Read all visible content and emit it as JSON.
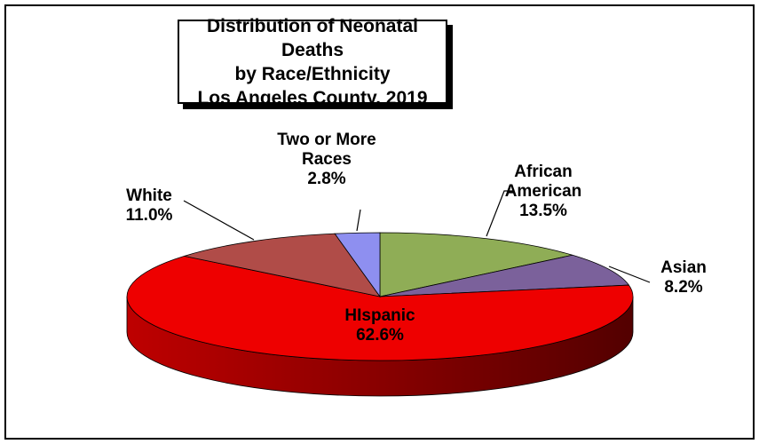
{
  "chart_data": {
    "type": "pie",
    "title": [
      "Distribution of Neonatal Deaths",
      "by Race/Ethnicity",
      "Los Angeles County, 2019"
    ],
    "categories": [
      "African American",
      "Asian",
      "HIspanic",
      "White",
      "Two or More Races"
    ],
    "values": [
      13.5,
      8.2,
      62.6,
      11.0,
      2.8
    ],
    "value_labels": [
      "13.5%",
      "8.2%",
      "62.6%",
      "11.0%",
      "2.8%"
    ],
    "colors": [
      "#8fad56",
      "#7b619b",
      "#ee0000",
      "#b04c48",
      "#8e8ff0"
    ]
  }
}
